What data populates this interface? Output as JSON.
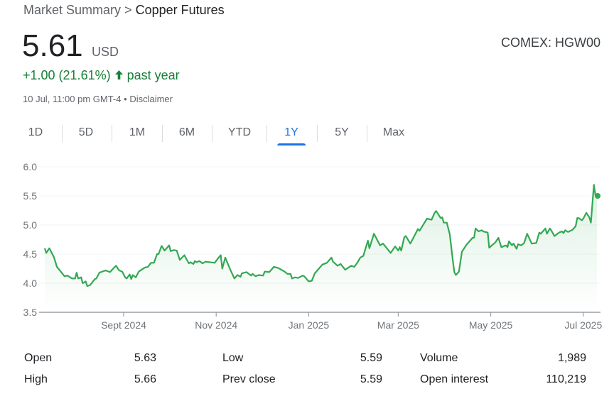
{
  "breadcrumb": {
    "parent": "Market Summary",
    "separator": ">",
    "current": "Copper Futures"
  },
  "quote": {
    "price": "5.61",
    "currency": "USD",
    "exchange": "COMEX: HGW00",
    "change": "+1.00 (21.61%)",
    "change_icon": "arrow-up-icon",
    "change_period": "past year",
    "timestamp": "10 Jul, 11:00 pm GMT-4",
    "dot": "•",
    "disclaimer": "Disclaimer"
  },
  "tabs": [
    {
      "label": "1D"
    },
    {
      "label": "5D"
    },
    {
      "label": "1M"
    },
    {
      "label": "6M"
    },
    {
      "label": "YTD"
    },
    {
      "label": "1Y",
      "active": true
    },
    {
      "label": "5Y"
    },
    {
      "label": "Max"
    }
  ],
  "colors": {
    "line": "#34a853",
    "accent": "#1a73e8",
    "positive": "#188038"
  },
  "chart_data": {
    "type": "area",
    "ylim": [
      3.5,
      6.0
    ],
    "yticks": [
      "6.0",
      "5.5",
      "5.0",
      "4.5",
      "4.0",
      "3.5"
    ],
    "xticks": [
      {
        "label": "Sept 2024",
        "date": "2024-09-01"
      },
      {
        "label": "Nov 2024",
        "date": "2024-11-01"
      },
      {
        "label": "Jan 2025",
        "date": "2025-01-01"
      },
      {
        "label": "Mar 2025",
        "date": "2025-03-01"
      },
      {
        "label": "May 2025",
        "date": "2025-05-01"
      },
      {
        "label": "Jul 2025",
        "date": "2025-07-01"
      }
    ],
    "xrange": [
      "2024-07-11",
      "2025-07-10"
    ],
    "grid": true,
    "points": [
      [
        "2024-07-11",
        4.6
      ],
      [
        "2024-07-12",
        4.52
      ],
      [
        "2024-07-14",
        4.6
      ],
      [
        "2024-07-17",
        4.45
      ],
      [
        "2024-07-19",
        4.28
      ],
      [
        "2024-07-24",
        4.12
      ],
      [
        "2024-07-26",
        4.13
      ],
      [
        "2024-07-29",
        4.08
      ],
      [
        "2024-07-31",
        4.08
      ],
      [
        "2024-08-01",
        4.18
      ],
      [
        "2024-08-02",
        4.08
      ],
      [
        "2024-08-04",
        4.1
      ],
      [
        "2024-08-05",
        4.0
      ],
      [
        "2024-08-07",
        4.03
      ],
      [
        "2024-08-08",
        3.95
      ],
      [
        "2024-08-10",
        3.97
      ],
      [
        "2024-08-13",
        4.07
      ],
      [
        "2024-08-14",
        4.08
      ],
      [
        "2024-08-16",
        4.18
      ],
      [
        "2024-08-18",
        4.2
      ],
      [
        "2024-08-20",
        4.22
      ],
      [
        "2024-08-23",
        4.19
      ],
      [
        "2024-08-25",
        4.25
      ],
      [
        "2024-08-27",
        4.3
      ],
      [
        "2024-08-29",
        4.22
      ],
      [
        "2024-08-31",
        4.2
      ],
      [
        "2024-09-02",
        4.1
      ],
      [
        "2024-09-03",
        4.08
      ],
      [
        "2024-09-05",
        4.15
      ],
      [
        "2024-09-06",
        4.07
      ],
      [
        "2024-09-07",
        4.14
      ],
      [
        "2024-09-09",
        4.1
      ],
      [
        "2024-09-11",
        4.2
      ],
      [
        "2024-09-15",
        4.27
      ],
      [
        "2024-09-17",
        4.28
      ],
      [
        "2024-09-19",
        4.35
      ],
      [
        "2024-09-21",
        4.35
      ],
      [
        "2024-09-23",
        4.5
      ],
      [
        "2024-09-24",
        4.5
      ],
      [
        "2024-09-26",
        4.64
      ],
      [
        "2024-09-28",
        4.56
      ],
      [
        "2024-10-01",
        4.65
      ],
      [
        "2024-10-02",
        4.55
      ],
      [
        "2024-10-04",
        4.57
      ],
      [
        "2024-10-06",
        4.56
      ],
      [
        "2024-10-08",
        4.4
      ],
      [
        "2024-10-11",
        4.48
      ],
      [
        "2024-10-14",
        4.34
      ],
      [
        "2024-10-15",
        4.36
      ],
      [
        "2024-10-17",
        4.33
      ],
      [
        "2024-10-18",
        4.38
      ],
      [
        "2024-10-19",
        4.36
      ],
      [
        "2024-10-21",
        4.38
      ],
      [
        "2024-10-23",
        4.34
      ],
      [
        "2024-10-25",
        4.37
      ],
      [
        "2024-10-31",
        4.35
      ],
      [
        "2024-11-02",
        4.42
      ],
      [
        "2024-11-04",
        4.48
      ],
      [
        "2024-11-05",
        4.25
      ],
      [
        "2024-11-07",
        4.44
      ],
      [
        "2024-11-10",
        4.25
      ],
      [
        "2024-11-13",
        4.08
      ],
      [
        "2024-11-15",
        4.14
      ],
      [
        "2024-11-17",
        4.11
      ],
      [
        "2024-11-18",
        4.17
      ],
      [
        "2024-11-21",
        4.19
      ],
      [
        "2024-11-24",
        4.13
      ],
      [
        "2024-11-25",
        4.16
      ],
      [
        "2024-11-27",
        4.12
      ],
      [
        "2024-11-29",
        4.14
      ],
      [
        "2024-12-02",
        4.13
      ],
      [
        "2024-12-03",
        4.2
      ],
      [
        "2024-12-06",
        4.19
      ],
      [
        "2024-12-09",
        4.28
      ],
      [
        "2024-12-12",
        4.26
      ],
      [
        "2024-12-16",
        4.2
      ],
      [
        "2024-12-18",
        4.16
      ],
      [
        "2024-12-20",
        4.16
      ],
      [
        "2024-12-21",
        4.08
      ],
      [
        "2024-12-23",
        4.1
      ],
      [
        "2024-12-25",
        4.09
      ],
      [
        "2024-12-28",
        4.13
      ],
      [
        "2024-12-29",
        4.12
      ],
      [
        "2025-01-01",
        4.03
      ],
      [
        "2025-01-03",
        4.04
      ],
      [
        "2025-01-05",
        4.17
      ],
      [
        "2025-01-10",
        4.32
      ],
      [
        "2025-01-13",
        4.35
      ],
      [
        "2025-01-16",
        4.44
      ],
      [
        "2025-01-17",
        4.37
      ],
      [
        "2025-01-20",
        4.3
      ],
      [
        "2025-01-22",
        4.33
      ],
      [
        "2025-01-25",
        4.23
      ],
      [
        "2025-01-29",
        4.3
      ],
      [
        "2025-01-31",
        4.28
      ],
      [
        "2025-02-02",
        4.35
      ],
      [
        "2025-02-04",
        4.44
      ],
      [
        "2025-02-06",
        4.47
      ],
      [
        "2025-02-09",
        4.73
      ],
      [
        "2025-02-10",
        4.6
      ],
      [
        "2025-02-13",
        4.85
      ],
      [
        "2025-02-17",
        4.65
      ],
      [
        "2025-02-19",
        4.68
      ],
      [
        "2025-02-24",
        4.52
      ],
      [
        "2025-02-27",
        4.63
      ],
      [
        "2025-03-01",
        4.56
      ],
      [
        "2025-03-02",
        4.62
      ],
      [
        "2025-03-03",
        4.56
      ],
      [
        "2025-03-05",
        4.79
      ],
      [
        "2025-03-06",
        4.81
      ],
      [
        "2025-03-09",
        4.68
      ],
      [
        "2025-03-14",
        4.93
      ],
      [
        "2025-03-15",
        4.9
      ],
      [
        "2025-03-20",
        5.11
      ],
      [
        "2025-03-23",
        5.09
      ],
      [
        "2025-03-25",
        5.21
      ],
      [
        "2025-03-26",
        5.24
      ],
      [
        "2025-03-29",
        5.12
      ],
      [
        "2025-03-30",
        5.13
      ],
      [
        "2025-03-31",
        5.04
      ],
      [
        "2025-04-02",
        5.04
      ],
      [
        "2025-04-04",
        4.84
      ],
      [
        "2025-04-06",
        4.39
      ],
      [
        "2025-04-07",
        4.19
      ],
      [
        "2025-04-08",
        4.14
      ],
      [
        "2025-04-10",
        4.2
      ],
      [
        "2025-04-12",
        4.54
      ],
      [
        "2025-04-15",
        4.66
      ],
      [
        "2025-04-19",
        4.78
      ],
      [
        "2025-04-20",
        4.78
      ],
      [
        "2025-04-21",
        4.94
      ],
      [
        "2025-04-23",
        4.89
      ],
      [
        "2025-04-25",
        4.91
      ],
      [
        "2025-04-26",
        4.89
      ],
      [
        "2025-04-29",
        4.87
      ],
      [
        "2025-04-30",
        4.61
      ],
      [
        "2025-05-04",
        4.7
      ],
      [
        "2025-05-06",
        4.78
      ],
      [
        "2025-05-08",
        4.62
      ],
      [
        "2025-05-11",
        4.65
      ],
      [
        "2025-05-12",
        4.62
      ],
      [
        "2025-05-13",
        4.72
      ],
      [
        "2025-05-15",
        4.65
      ],
      [
        "2025-05-16",
        4.68
      ],
      [
        "2025-05-18",
        4.59
      ],
      [
        "2025-05-19",
        4.67
      ],
      [
        "2025-05-21",
        4.65
      ],
      [
        "2025-05-23",
        4.69
      ],
      [
        "2025-05-25",
        4.85
      ],
      [
        "2025-05-28",
        4.68
      ],
      [
        "2025-05-31",
        4.69
      ],
      [
        "2025-06-02",
        4.87
      ],
      [
        "2025-06-03",
        4.85
      ],
      [
        "2025-06-06",
        4.94
      ],
      [
        "2025-06-07",
        4.85
      ],
      [
        "2025-06-09",
        4.94
      ],
      [
        "2025-06-10",
        4.9
      ],
      [
        "2025-06-12",
        4.81
      ],
      [
        "2025-06-15",
        4.87
      ],
      [
        "2025-06-17",
        4.89
      ],
      [
        "2025-06-18",
        4.86
      ],
      [
        "2025-06-19",
        4.91
      ],
      [
        "2025-06-21",
        4.88
      ],
      [
        "2025-06-24",
        4.92
      ],
      [
        "2025-06-26",
        4.98
      ],
      [
        "2025-06-27",
        5.12
      ],
      [
        "2025-06-28",
        5.12
      ],
      [
        "2025-06-30",
        5.08
      ],
      [
        "2025-07-01",
        5.11
      ],
      [
        "2025-07-03",
        5.21
      ],
      [
        "2025-07-05",
        5.13
      ],
      [
        "2025-07-06",
        5.04
      ],
      [
        "2025-07-08",
        5.69
      ],
      [
        "2025-07-09",
        5.51
      ],
      [
        "2025-07-10",
        5.5
      ]
    ]
  },
  "stats": [
    {
      "label": "Open",
      "value": "5.63"
    },
    {
      "label": "High",
      "value": "5.66"
    },
    {
      "label": "Low",
      "value": "5.59"
    },
    {
      "label": "Prev close",
      "value": "5.59"
    },
    {
      "label": "Volume",
      "value": "1,989"
    },
    {
      "label": "Open interest",
      "value": "110,219"
    }
  ]
}
